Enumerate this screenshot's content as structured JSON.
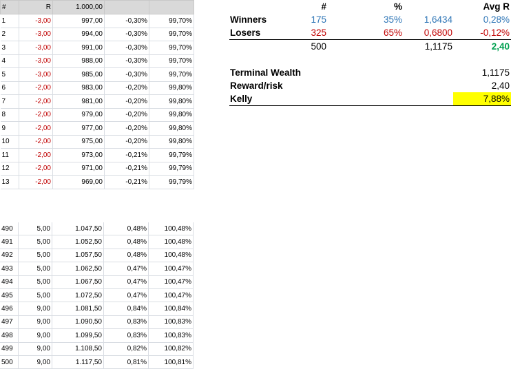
{
  "ledger_header": {
    "idx": "#",
    "r": "R",
    "equity": "1.000,00",
    "pct": "",
    "cum": ""
  },
  "ledger_top": [
    {
      "idx": "1",
      "r": "-3,00",
      "equity": "997,00",
      "pct": "-0,30%",
      "cum": "99,70%"
    },
    {
      "idx": "2",
      "r": "-3,00",
      "equity": "994,00",
      "pct": "-0,30%",
      "cum": "99,70%"
    },
    {
      "idx": "3",
      "r": "-3,00",
      "equity": "991,00",
      "pct": "-0,30%",
      "cum": "99,70%"
    },
    {
      "idx": "4",
      "r": "-3,00",
      "equity": "988,00",
      "pct": "-0,30%",
      "cum": "99,70%"
    },
    {
      "idx": "5",
      "r": "-3,00",
      "equity": "985,00",
      "pct": "-0,30%",
      "cum": "99,70%"
    },
    {
      "idx": "6",
      "r": "-2,00",
      "equity": "983,00",
      "pct": "-0,20%",
      "cum": "99,80%"
    },
    {
      "idx": "7",
      "r": "-2,00",
      "equity": "981,00",
      "pct": "-0,20%",
      "cum": "99,80%"
    },
    {
      "idx": "8",
      "r": "-2,00",
      "equity": "979,00",
      "pct": "-0,20%",
      "cum": "99,80%"
    },
    {
      "idx": "9",
      "r": "-2,00",
      "equity": "977,00",
      "pct": "-0,20%",
      "cum": "99,80%"
    },
    {
      "idx": "10",
      "r": "-2,00",
      "equity": "975,00",
      "pct": "-0,20%",
      "cum": "99,80%"
    },
    {
      "idx": "11",
      "r": "-2,00",
      "equity": "973,00",
      "pct": "-0,21%",
      "cum": "99,79%"
    },
    {
      "idx": "12",
      "r": "-2,00",
      "equity": "971,00",
      "pct": "-0,21%",
      "cum": "99,79%"
    },
    {
      "idx": "13",
      "r": "-2,00",
      "equity": "969,00",
      "pct": "-0,21%",
      "cum": "99,79%"
    }
  ],
  "ledger_bottom": [
    {
      "idx": "490",
      "r": "5,00",
      "equity": "1.047,50",
      "pct": "0,48%",
      "cum": "100,48%"
    },
    {
      "idx": "491",
      "r": "5,00",
      "equity": "1.052,50",
      "pct": "0,48%",
      "cum": "100,48%"
    },
    {
      "idx": "492",
      "r": "5,00",
      "equity": "1.057,50",
      "pct": "0,48%",
      "cum": "100,48%"
    },
    {
      "idx": "493",
      "r": "5,00",
      "equity": "1.062,50",
      "pct": "0,47%",
      "cum": "100,47%"
    },
    {
      "idx": "494",
      "r": "5,00",
      "equity": "1.067,50",
      "pct": "0,47%",
      "cum": "100,47%"
    },
    {
      "idx": "495",
      "r": "5,00",
      "equity": "1.072,50",
      "pct": "0,47%",
      "cum": "100,47%"
    },
    {
      "idx": "496",
      "r": "9,00",
      "equity": "1.081,50",
      "pct": "0,84%",
      "cum": "100,84%"
    },
    {
      "idx": "497",
      "r": "9,00",
      "equity": "1.090,50",
      "pct": "0,83%",
      "cum": "100,83%"
    },
    {
      "idx": "498",
      "r": "9,00",
      "equity": "1.099,50",
      "pct": "0,83%",
      "cum": "100,83%"
    },
    {
      "idx": "499",
      "r": "9,00",
      "equity": "1.108,50",
      "pct": "0,82%",
      "cum": "100,82%"
    },
    {
      "idx": "500",
      "r": "9,00",
      "equity": "1.117,50",
      "pct": "0,81%",
      "cum": "100,81%"
    }
  ],
  "summary": {
    "header": {
      "count": "#",
      "pct": "%",
      "avg_r": "Avg R"
    },
    "winners": {
      "label": "Winners",
      "count": "175",
      "pct": "35%",
      "factor": "1,6434",
      "avg_r": "0,28%"
    },
    "losers": {
      "label": "Losers",
      "count": "325",
      "pct": "65%",
      "factor": "0,6800",
      "avg_r": "-0,12%"
    },
    "total": {
      "count": "500",
      "factor": "1,1175",
      "avg_r": "2,40"
    },
    "terminal_wealth": {
      "label": "Terminal Wealth",
      "value": "1,1175"
    },
    "reward_risk": {
      "label": "Reward/risk",
      "value": "2,40"
    },
    "kelly": {
      "label": "Kelly",
      "value": "7,88%"
    }
  },
  "colors": {
    "winners": "#2e75b6",
    "losers": "#c00000",
    "total_avg": "#00a050",
    "kelly_highlight": "#ffff00",
    "header_fill": "#d9d9d9"
  }
}
